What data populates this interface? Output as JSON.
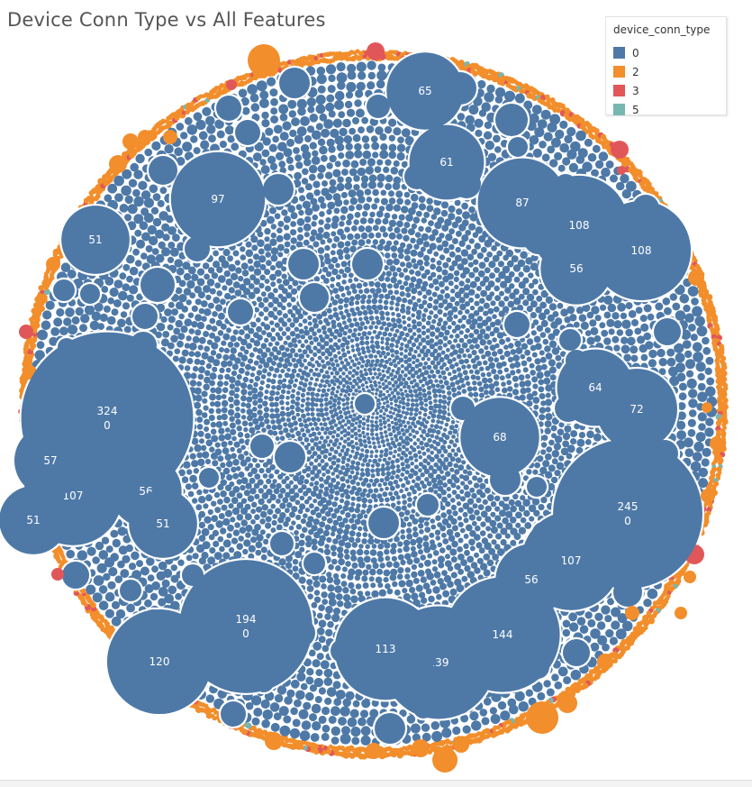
{
  "chart_data": {
    "type": "bubble",
    "title": "Device Conn Type vs All Features",
    "legend": {
      "title": "device_conn_type",
      "placement": "top-right",
      "items": [
        {
          "label": "0",
          "color": "#4e79a7"
        },
        {
          "label": "2",
          "color": "#f28e2b"
        },
        {
          "label": "3",
          "color": "#e15759"
        },
        {
          "label": "5",
          "color": "#76b7b2"
        }
      ]
    },
    "labeled_bubbles": [
      {
        "value": 324,
        "device_conn_type": "0",
        "lines": [
          "324",
          "0"
        ]
      },
      {
        "value": 245,
        "device_conn_type": "0",
        "lines": [
          "245",
          "0"
        ]
      },
      {
        "value": 194,
        "device_conn_type": "0",
        "lines": [
          "194",
          "0"
        ]
      },
      {
        "value": 144,
        "device_conn_type": "0",
        "lines": [
          "144"
        ]
      },
      {
        "value": 139,
        "device_conn_type": "0",
        "lines": [
          "139"
        ]
      },
      {
        "value": 120,
        "device_conn_type": "0",
        "lines": [
          "120"
        ]
      },
      {
        "value": 113,
        "device_conn_type": "0",
        "lines": [
          "113"
        ]
      },
      {
        "value": 108,
        "device_conn_type": "0",
        "lines": [
          "108"
        ]
      },
      {
        "value": 108,
        "device_conn_type": "0",
        "lines": [
          "108"
        ]
      },
      {
        "value": 107,
        "device_conn_type": "0",
        "lines": [
          "107"
        ]
      },
      {
        "value": 107,
        "device_conn_type": "0",
        "lines": [
          "107"
        ]
      },
      {
        "value": 97,
        "device_conn_type": "0",
        "lines": [
          "97"
        ]
      },
      {
        "value": 87,
        "device_conn_type": "0",
        "lines": [
          "87"
        ]
      },
      {
        "value": 72,
        "device_conn_type": "0",
        "lines": [
          "72"
        ]
      },
      {
        "value": 68,
        "device_conn_type": "0",
        "lines": [
          "68"
        ]
      },
      {
        "value": 65,
        "device_conn_type": "0",
        "lines": [
          "65"
        ]
      },
      {
        "value": 64,
        "device_conn_type": "0",
        "lines": [
          "64"
        ]
      },
      {
        "value": 61,
        "device_conn_type": "0",
        "lines": [
          "61"
        ]
      },
      {
        "value": 57,
        "device_conn_type": "0",
        "lines": [
          "57"
        ]
      },
      {
        "value": 56,
        "device_conn_type": "0",
        "lines": [
          "56"
        ]
      },
      {
        "value": 56,
        "device_conn_type": "0",
        "lines": [
          "56"
        ]
      },
      {
        "value": 56,
        "device_conn_type": "0",
        "lines": [
          "56"
        ]
      },
      {
        "value": 51,
        "device_conn_type": "0",
        "lines": [
          "51"
        ]
      },
      {
        "value": 51,
        "device_conn_type": "0",
        "lines": [
          "51"
        ]
      },
      {
        "value": 51,
        "device_conn_type": "0",
        "lines": [
          "51"
        ]
      }
    ]
  }
}
